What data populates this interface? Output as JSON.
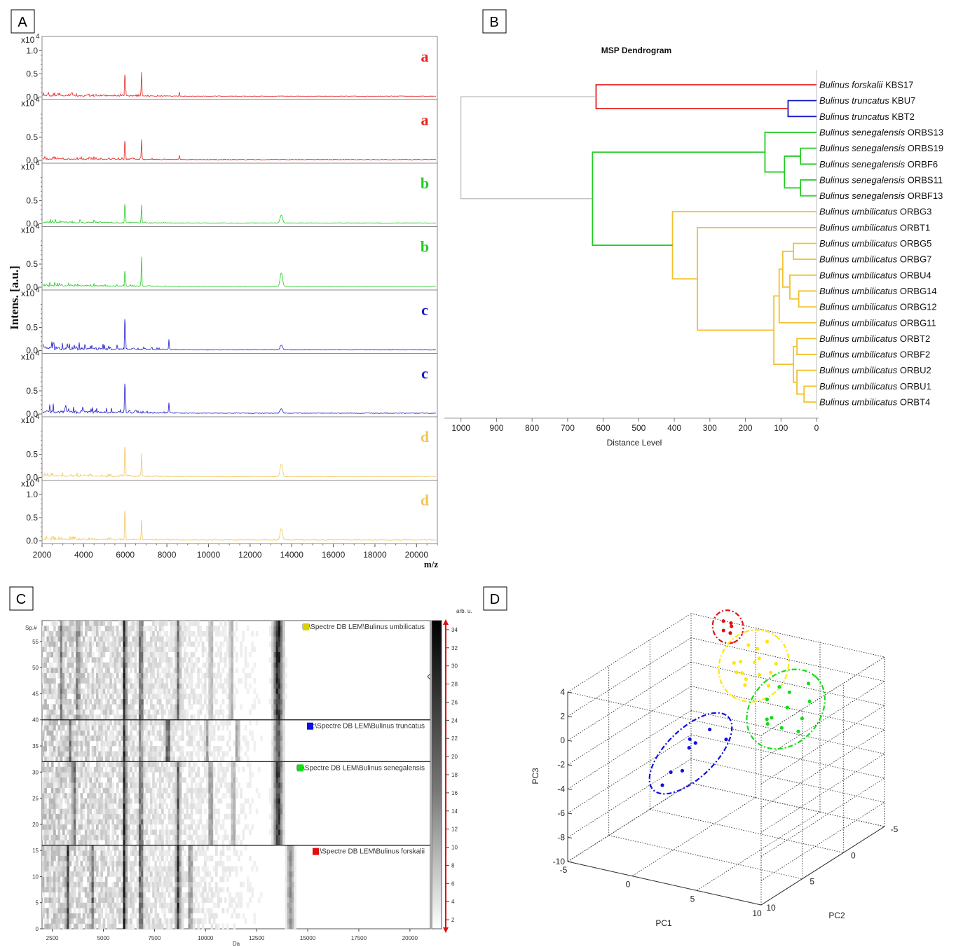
{
  "panels": {
    "A": {
      "letter": "A"
    },
    "B": {
      "letter": "B"
    },
    "C": {
      "letter": "C"
    },
    "D": {
      "letter": "D"
    }
  },
  "colors": {
    "a": "#e8201e",
    "b": "#22cc22",
    "c": "#1a1ac8",
    "d": "#f2c65a"
  },
  "chart_data": [
    {
      "type": "line",
      "panel": "A",
      "ylabel": "Intens. [a.u.]",
      "xlabel": "m/z",
      "exponent_label": "x10",
      "exponent": "4",
      "xlim": [
        2000,
        21000
      ],
      "xticks": [
        "2000",
        "4000",
        "6000",
        "8000",
        "10000",
        "12000",
        "14000",
        "16000",
        "18000",
        "20000"
      ],
      "xtick_values": [
        2000,
        4000,
        6000,
        8000,
        10000,
        12000,
        14000,
        16000,
        18000,
        20000
      ],
      "spectra": [
        {
          "label": "a",
          "color": "#e8201e",
          "yticks": [
            "1.0",
            "0.5",
            "0.0"
          ],
          "peaks": [
            [
              5990,
              0.72
            ],
            [
              6780,
              0.52
            ],
            [
              8600,
              0.1
            ]
          ]
        },
        {
          "label": "a",
          "color": "#e8201e",
          "yticks": [
            "0.5",
            "0.0"
          ],
          "peaks": [
            [
              5990,
              0.62
            ],
            [
              6780,
              0.42
            ],
            [
              8600,
              0.1
            ]
          ]
        },
        {
          "label": "b",
          "color": "#22cc22",
          "yticks": [
            "0.5",
            "0.0"
          ],
          "peaks": [
            [
              5990,
              0.62
            ],
            [
              6780,
              0.4
            ],
            [
              13500,
              0.18
            ]
          ]
        },
        {
          "label": "b",
          "color": "#22cc22",
          "yticks": [
            "0.5",
            "0.0"
          ],
          "peaks": [
            [
              5990,
              0.46
            ],
            [
              6780,
              0.66
            ],
            [
              13500,
              0.3
            ]
          ]
        },
        {
          "label": "c",
          "color": "#1a1ac8",
          "yticks": [
            "0.5",
            "0.0"
          ],
          "peaks": [
            [
              5990,
              1.0
            ],
            [
              8100,
              0.22
            ],
            [
              13500,
              0.1
            ]
          ]
        },
        {
          "label": "c",
          "color": "#1a1ac8",
          "yticks": [
            "0.5",
            "0.0"
          ],
          "peaks": [
            [
              5990,
              0.98
            ],
            [
              8100,
              0.22
            ],
            [
              13500,
              0.1
            ]
          ]
        },
        {
          "label": "d",
          "color": "#f2c65a",
          "yticks": [
            "0.5",
            "0.0"
          ],
          "peaks": [
            [
              5990,
              1.0
            ],
            [
              6780,
              0.5
            ],
            [
              13500,
              0.28
            ]
          ]
        },
        {
          "label": "d",
          "color": "#f2c65a",
          "yticks": [
            "1.0",
            "0.5",
            "0.0"
          ],
          "peaks": [
            [
              5990,
              0.95
            ],
            [
              6780,
              0.45
            ],
            [
              13500,
              0.25
            ]
          ]
        }
      ]
    },
    {
      "type": "dendrogram",
      "panel": "B",
      "title": "MSP Dendrogram",
      "xlabel": "Distance Level",
      "xlim": [
        1000,
        0
      ],
      "xticks": [
        "1000",
        "900",
        "800",
        "700",
        "600",
        "500",
        "400",
        "300",
        "200",
        "100",
        "0"
      ],
      "xtick_values": [
        1000,
        900,
        800,
        700,
        600,
        500,
        400,
        300,
        200,
        100,
        0
      ],
      "leaves": [
        {
          "genus": "Bulinus forskalii",
          "code": "KBS17",
          "color": "#e8201e"
        },
        {
          "genus": "Bulinus truncatus",
          "code": "KBU7",
          "color": "#1a1ac8"
        },
        {
          "genus": "Bulinus truncatus",
          "code": "KBT2",
          "color": "#1a1ac8"
        },
        {
          "genus": "Bulinus senegalensis",
          "code": "ORBS13",
          "color": "#22cc22"
        },
        {
          "genus": "Bulinus senegalensis",
          "code": "ORBS19",
          "color": "#22cc22"
        },
        {
          "genus": "Bulinus senegalensis",
          "code": "ORBF6",
          "color": "#22cc22"
        },
        {
          "genus": "Bulinus senegalensis",
          "code": "ORBS11",
          "color": "#22cc22"
        },
        {
          "genus": "Bulinus senegalensis",
          "code": "ORBF13",
          "color": "#22cc22"
        },
        {
          "genus": "Bulinus umbilicatus",
          "code": "ORBG3",
          "color": "#f2c12e"
        },
        {
          "genus": "Bulinus umbilicatus",
          "code": "ORBT1",
          "color": "#f2c12e"
        },
        {
          "genus": "Bulinus umbilicatus",
          "code": "ORBG5",
          "color": "#f2c12e"
        },
        {
          "genus": "Bulinus umbilicatus",
          "code": "ORBG7",
          "color": "#f2c12e"
        },
        {
          "genus": "Bulinus umbilicatus",
          "code": "ORBU4",
          "color": "#f2c12e"
        },
        {
          "genus": "Bulinus umbilicatus",
          "code": "ORBG14",
          "color": "#f2c12e"
        },
        {
          "genus": "Bulinus umbilicatus",
          "code": "ORBG12",
          "color": "#f2c12e"
        },
        {
          "genus": "Bulinus umbilicatus",
          "code": "ORBG11",
          "color": "#f2c12e"
        },
        {
          "genus": "Bulinus umbilicatus",
          "code": "ORBT2",
          "color": "#f2c12e"
        },
        {
          "genus": "Bulinus umbilicatus",
          "code": "ORBF2",
          "color": "#f2c12e"
        },
        {
          "genus": "Bulinus umbilicatus",
          "code": "ORBU2",
          "color": "#f2c12e"
        },
        {
          "genus": "Bulinus umbilicatus",
          "code": "ORBU1",
          "color": "#f2c12e"
        },
        {
          "genus": "Bulinus umbilicatus",
          "code": "ORBT4",
          "color": "#f2c12e"
        }
      ],
      "merges": [
        {
          "a": "L1",
          "b": "L2",
          "d": 80,
          "id": "M1",
          "color": "#1a1ac8"
        },
        {
          "a": "L0",
          "b": "M1",
          "d": 620,
          "id": "M2",
          "color": "#e8201e"
        },
        {
          "a": "L4",
          "b": "L5",
          "d": 45,
          "id": "M3",
          "color": "#22cc22"
        },
        {
          "a": "L6",
          "b": "L7",
          "d": 45,
          "id": "M4",
          "color": "#22cc22"
        },
        {
          "a": "M3",
          "b": "M4",
          "d": 90,
          "id": "M5",
          "color": "#22cc22"
        },
        {
          "a": "L3",
          "b": "M5",
          "d": 145,
          "id": "M6",
          "color": "#22cc22"
        },
        {
          "a": "L10",
          "b": "L11",
          "d": 65,
          "id": "M7",
          "color": "#f2c12e"
        },
        {
          "a": "L13",
          "b": "L14",
          "d": 50,
          "id": "M8",
          "color": "#f2c12e"
        },
        {
          "a": "L12",
          "b": "M8",
          "d": 75,
          "id": "M9",
          "color": "#f2c12e"
        },
        {
          "a": "M7",
          "b": "M9",
          "d": 95,
          "id": "M10",
          "color": "#f2c12e"
        },
        {
          "a": "M10",
          "b": "L15",
          "d": 105,
          "id": "M11",
          "color": "#f2c12e"
        },
        {
          "a": "L16",
          "b": "L17",
          "d": 55,
          "id": "M12",
          "color": "#f2c12e"
        },
        {
          "a": "L19",
          "b": "L20",
          "d": 35,
          "id": "M13",
          "color": "#f2c12e"
        },
        {
          "a": "L18",
          "b": "M13",
          "d": 55,
          "id": "M14",
          "color": "#f2c12e"
        },
        {
          "a": "M12",
          "b": "M14",
          "d": 65,
          "id": "M15",
          "color": "#f2c12e"
        },
        {
          "a": "M11",
          "b": "M15",
          "d": 120,
          "id": "M16",
          "color": "#f2c12e"
        },
        {
          "a": "L9",
          "b": "M16",
          "d": 335,
          "id": "M17",
          "color": "#f2c12e"
        },
        {
          "a": "L8",
          "b": "M17",
          "d": 405,
          "id": "M18",
          "color": "#f2c12e"
        },
        {
          "a": "M6",
          "b": "M18",
          "d": 630,
          "id": "M19",
          "color": "#22cc22"
        },
        {
          "a": "M2",
          "b": "M19",
          "d": 1000,
          "id": "M20",
          "color": "#aaaaaa"
        }
      ]
    },
    {
      "type": "heatmap",
      "panel": "C",
      "xlabel": "Da",
      "ylabel": "Sp.#",
      "unit_label": "arb. u.",
      "xlim": [
        2000,
        21000
      ],
      "xticks": [
        "2500",
        "5000",
        "7500",
        "10000",
        "12500",
        "15000",
        "17500",
        "20000"
      ],
      "xtick_values": [
        2500,
        5000,
        7500,
        10000,
        12500,
        15000,
        17500,
        20000
      ],
      "yticks": [
        "0",
        "5",
        "10",
        "15",
        "20",
        "25",
        "30",
        "35",
        "40",
        "45",
        "50",
        "55"
      ],
      "ytick_values": [
        0,
        5,
        10,
        15,
        20,
        25,
        30,
        35,
        40,
        45,
        50,
        55
      ],
      "ylim": [
        0,
        59
      ],
      "colorbar_ticks": [
        "2",
        "4",
        "6",
        "8",
        "10",
        "12",
        "14",
        "16",
        "18",
        "20",
        "22",
        "24",
        "26",
        "28",
        "30",
        "32",
        "34"
      ],
      "colorbar_values": [
        2,
        4,
        6,
        8,
        10,
        12,
        14,
        16,
        18,
        20,
        22,
        24,
        26,
        28,
        30,
        32,
        34
      ],
      "colorbar_range": [
        1,
        35
      ],
      "groups": [
        {
          "label": "E:\\Spectre DB LEM\\Bulinus umbilicatus",
          "color": "#d8d200",
          "spectra": [
            40,
            59
          ]
        },
        {
          "label": "E:\\Spectre DB LEM\\Bulinus truncatus",
          "color": "#1010e0",
          "spectra": [
            32,
            40
          ]
        },
        {
          "label": "E:\\Spectre DB LEM\\Bulinus senegalensis",
          "color": "#11dd11",
          "spectra": [
            16,
            32
          ]
        },
        {
          "label": "E:\\Spectre DB LEM\\Bulinus forskalii",
          "color": "#e01010",
          "spectra": [
            0,
            16
          ]
        }
      ]
    },
    {
      "type": "scatter3d",
      "panel": "D",
      "xlabel": "PC1",
      "ylabel": "PC2",
      "zlabel": "PC3",
      "xlim": [
        -5,
        10
      ],
      "ylim": [
        -5,
        10
      ],
      "zlim": [
        -10,
        4
      ],
      "xticks": [
        "-5",
        "0",
        "5",
        "10"
      ],
      "xtick_values": [
        -5,
        0,
        5,
        10
      ],
      "yticks": [
        "-5",
        "0",
        "5",
        "10"
      ],
      "ytick_values": [
        -5,
        0,
        5,
        10
      ],
      "zticks": [
        "4",
        "2",
        "0",
        "-2",
        "-4",
        "-6",
        "-8",
        "-10"
      ],
      "ztick_values": [
        4,
        2,
        0,
        -2,
        -4,
        -6,
        -8,
        -10
      ],
      "clusters": [
        {
          "group": "Bulinus forskalii",
          "color": "#e01010",
          "points": [
            [
              -1.6,
              -3.6,
              4.8
            ],
            [
              -1.2,
              -3.9,
              4.6
            ],
            [
              -1.4,
              -3.3,
              4.2
            ],
            [
              -1.0,
              -3.5,
              4.0
            ],
            [
              -1.1,
              -3.8,
              4.4
            ]
          ]
        },
        {
          "group": "Bulinus umbilicatus",
          "color": "#ffe600",
          "points": [
            [
              2.0,
              -1.0,
              4.8
            ],
            [
              2.8,
              -0.5,
              3.8
            ],
            [
              3.6,
              0.2,
              4.6
            ],
            [
              2.4,
              0.4,
              3.2
            ],
            [
              3.2,
              -1.4,
              5.2
            ],
            [
              4.0,
              0.8,
              3.6
            ],
            [
              1.6,
              -0.2,
              2.8
            ],
            [
              3.0,
              1.0,
              2.6
            ],
            [
              4.4,
              -0.6,
              4.0
            ],
            [
              2.2,
              -1.8,
              4.2
            ],
            [
              3.8,
              -0.9,
              3.0
            ],
            [
              2.6,
              0.9,
              4.4
            ],
            [
              3.4,
              1.5,
              3.4
            ],
            [
              1.9,
              0.6,
              4.0
            ],
            [
              4.2,
              0.0,
              2.4
            ]
          ]
        },
        {
          "group": "Bulinus senegalensis",
          "color": "#11dd11",
          "points": [
            [
              5.8,
              1.2,
              3.2
            ],
            [
              6.8,
              1.8,
              2.0
            ],
            [
              7.8,
              0.8,
              3.8
            ],
            [
              5.6,
              2.4,
              1.0
            ],
            [
              7.0,
              2.8,
              0.8
            ],
            [
              8.2,
              2.2,
              1.6
            ],
            [
              6.2,
              0.6,
              2.6
            ],
            [
              7.4,
              1.4,
              0.0
            ],
            [
              6.0,
              3.0,
              3.0
            ],
            [
              8.4,
              1.6,
              2.8
            ],
            [
              5.4,
              2.0,
              0.4
            ],
            [
              6.6,
              3.4,
              1.8
            ]
          ]
        },
        {
          "group": "Bulinus truncatus",
          "color": "#1010e0",
          "points": [
            [
              -3.4,
              1.0,
              -7.2
            ],
            [
              -3.0,
              0.6,
              -6.2
            ],
            [
              -1.6,
              1.4,
              -5.4
            ],
            [
              -1.6,
              -0.2,
              -3.8
            ],
            [
              -1.4,
              0.8,
              -3.0
            ],
            [
              -1.2,
              1.2,
              -3.5
            ],
            [
              0.4,
              1.2,
              -1.6
            ],
            [
              1.8,
              1.4,
              -2.0
            ]
          ]
        }
      ]
    }
  ]
}
